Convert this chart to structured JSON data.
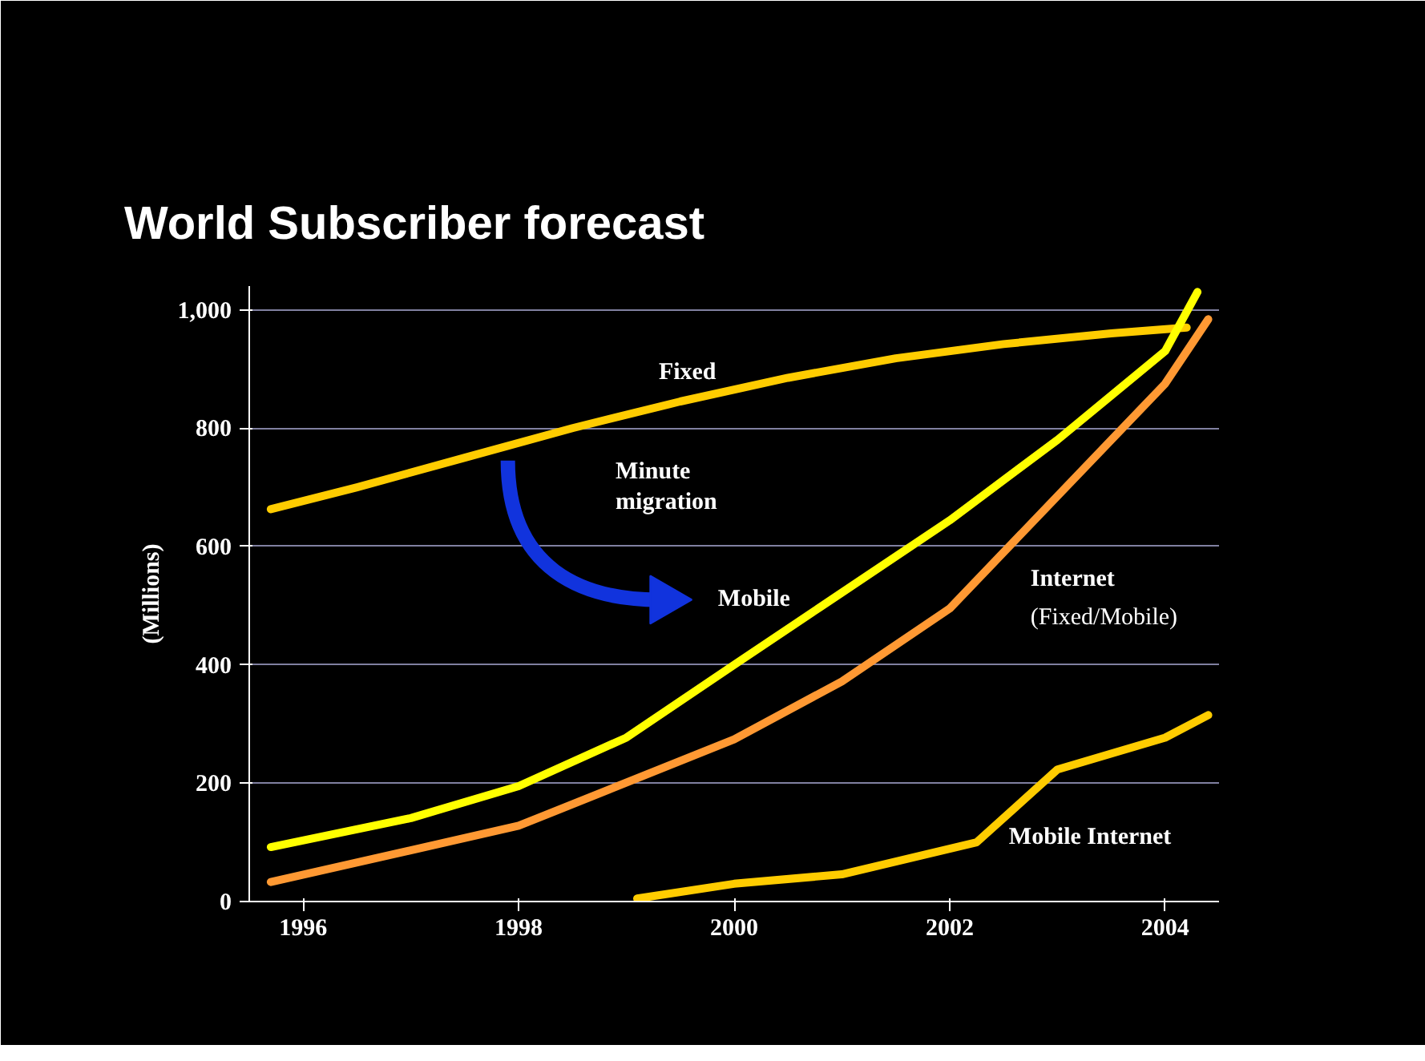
{
  "chart_data": {
    "type": "line",
    "title": "World Subscriber forecast",
    "ylabel": "(Millions)",
    "xlim": [
      1995.5,
      2004.5
    ],
    "xticks": [
      1996,
      1998,
      2000,
      2002,
      2004
    ],
    "ylim": [
      0,
      1040
    ],
    "yticks": [
      0,
      200,
      400,
      600,
      800,
      {
        "value": 1000,
        "label": "1,000"
      }
    ],
    "grid": "y",
    "series": [
      {
        "color": "#ffcc00",
        "x": [
          1995.7,
          1996.5,
          1997.5,
          1998.5,
          1999.5,
          2000.5,
          2001.5,
          2002.5,
          2003.5,
          2004.2
        ],
        "values": [
          663,
          700,
          750,
          800,
          845,
          885,
          918,
          942,
          960,
          970
        ]
      },
      {
        "color": "#ffff00",
        "x": [
          1995.7,
          1997,
          1998,
          1999,
          2000,
          2001,
          2002,
          2003,
          2004,
          2004.3
        ],
        "values": [
          92,
          141,
          195,
          277,
          400,
          522,
          644,
          780,
          930,
          1030
        ]
      },
      {
        "color": "#ff9933",
        "x": [
          1995.7,
          1998,
          2000,
          2001,
          2002,
          2003,
          2004,
          2004.4
        ],
        "values": [
          33,
          128,
          274,
          372,
          495,
          685,
          875,
          984
        ]
      },
      {
        "color": "#ffcc00",
        "x": [
          1999.1,
          2000,
          2001,
          2002.25,
          2003,
          2004,
          2004.4
        ],
        "values": [
          5,
          30,
          46,
          100,
          223,
          277,
          315
        ]
      }
    ],
    "annotations": [
      "Fixed",
      "Minute migration",
      "Mobile",
      "Internet",
      "(Fixed/Mobile)",
      "Mobile Internet"
    ]
  }
}
